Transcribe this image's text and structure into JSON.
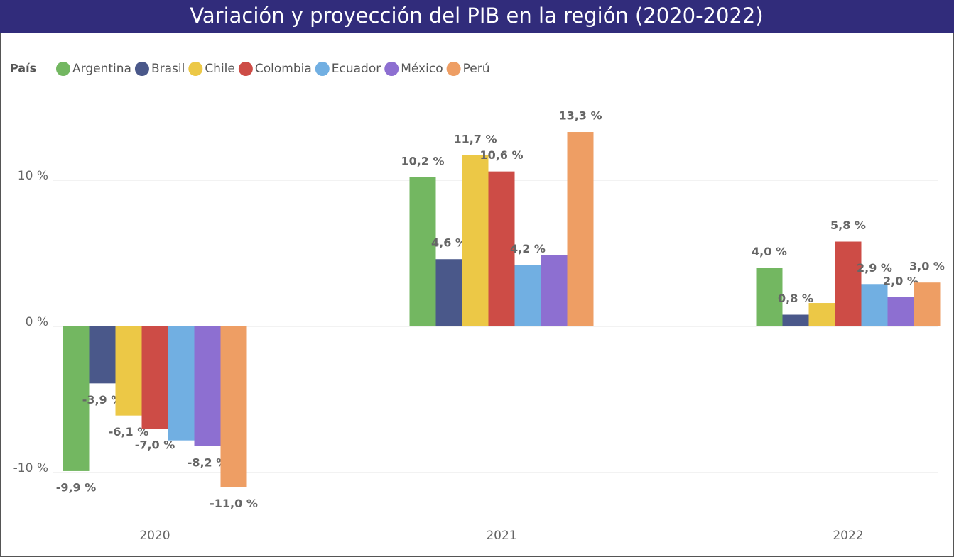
{
  "chart_data": {
    "type": "bar",
    "title": "Variación y proyección del PIB en la región (2020-2022)",
    "legend_title": "País",
    "categories": [
      "2020",
      "2021",
      "2022"
    ],
    "series": [
      {
        "name": "Argentina",
        "color": "#73b761",
        "values": [
          -9.9,
          10.2,
          4.0
        ],
        "value_labels": [
          "-9,9 %",
          "10,2 %",
          "4,0 %"
        ]
      },
      {
        "name": "Brasil",
        "color": "#4a588a",
        "values": [
          -3.9,
          4.6,
          0.8
        ],
        "value_labels": [
          "-3,9 %",
          "4,6 %",
          "0,8 %"
        ]
      },
      {
        "name": "Chile",
        "color": "#ecc846",
        "values": [
          -6.1,
          11.7,
          1.6
        ],
        "value_labels": [
          "-6,1 %",
          "11,7 %",
          null
        ]
      },
      {
        "name": "Colombia",
        "color": "#cd4c46",
        "values": [
          -7.0,
          10.6,
          5.8
        ],
        "value_labels": [
          "-7,0 %",
          "10,6 %",
          "5,8 %"
        ]
      },
      {
        "name": "Ecuador",
        "color": "#71afe2",
        "values": [
          -7.8,
          4.2,
          2.9
        ],
        "value_labels": [
          null,
          "4,2 %",
          "2,9 %"
        ]
      },
      {
        "name": "México",
        "color": "#8d6fd1",
        "values": [
          -8.2,
          4.9,
          2.0
        ],
        "value_labels": [
          "-8,2 %",
          null,
          "2,0 %"
        ]
      },
      {
        "name": "Perú",
        "color": "#ee9e64",
        "values": [
          -11.0,
          13.3,
          3.0
        ],
        "value_labels": [
          "-11,0 %",
          "13,3 %",
          "3,0 %"
        ]
      }
    ],
    "ylim": [
      -13,
      16
    ],
    "yticks": [
      {
        "value": -10,
        "label": "-10 %"
      },
      {
        "value": 0,
        "label": "0 %"
      },
      {
        "value": 10,
        "label": "10 %"
      }
    ],
    "grid": true,
    "legend": "top-left"
  }
}
